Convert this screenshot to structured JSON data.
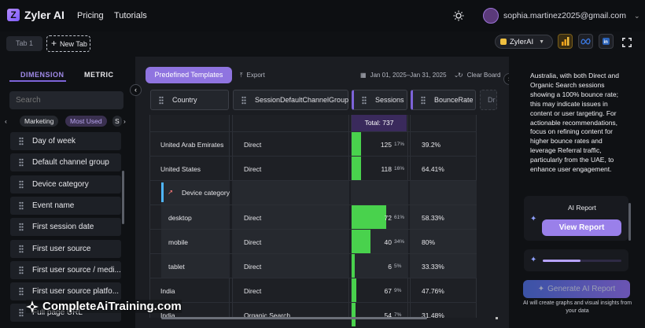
{
  "app": {
    "name": "Zyler AI",
    "nav": [
      "Pricing",
      "Tutorials"
    ],
    "user_email": "sophia.martinez2025@gmail.com"
  },
  "tabs": {
    "items": [
      "Tab 1"
    ],
    "new_tab_label": "New Tab"
  },
  "toolbar": {
    "model_label": "ZylerAI",
    "predefined_label": "Predefined Templates",
    "export_label": "Export",
    "date_range": "Jan 01, 2025–Jan 31, 2025",
    "clear_label": "Clear Board"
  },
  "sidebar": {
    "tab_dimension": "DIMENSION",
    "tab_metric": "METRIC",
    "search_placeholder": "Search",
    "chips": [
      "Marketing",
      "Most Used",
      "S"
    ],
    "items": [
      "Day of week",
      "Default channel group",
      "Device category",
      "Event name",
      "First session date",
      "First user source",
      "First user source / medi...",
      "First user source platfo...",
      "Full page URL"
    ]
  },
  "table": {
    "headers": [
      "Country",
      "SessionDefaultChannelGroup",
      "Sessions",
      "BounceRate",
      "Dr"
    ],
    "total_label": "Total: 737",
    "drag_label": "Device category",
    "rows": [
      {
        "country": "United Arab Emirates",
        "channel": "Direct",
        "sessions": "125",
        "pct": "17%",
        "bounce": "39.2%",
        "share": 0.17,
        "sub": false
      },
      {
        "country": "United States",
        "channel": "Direct",
        "sessions": "118",
        "pct": "16%",
        "bounce": "64.41%",
        "share": 0.16,
        "sub": false
      },
      {
        "country": "",
        "channel": "",
        "sessions": "",
        "pct": "",
        "bounce": "",
        "share": 0,
        "sub": "drag"
      },
      {
        "country": "desktop",
        "channel": "Direct",
        "sessions": "72",
        "pct": "61%",
        "bounce": "58.33%",
        "share": 0.61,
        "sub": true
      },
      {
        "country": "mobile",
        "channel": "Direct",
        "sessions": "40",
        "pct": "34%",
        "bounce": "80%",
        "share": 0.34,
        "sub": true
      },
      {
        "country": "tablet",
        "channel": "Direct",
        "sessions": "6",
        "pct": "5%",
        "bounce": "33.33%",
        "share": 0.05,
        "sub": true
      },
      {
        "country": "India",
        "channel": "Direct",
        "sessions": "67",
        "pct": "9%",
        "bounce": "47.76%",
        "share": 0.09,
        "sub": false
      },
      {
        "country": "India",
        "channel": "Organic Search",
        "sessions": "54",
        "pct": "7%",
        "bounce": "31.48%",
        "share": 0.07,
        "sub": false
      }
    ]
  },
  "ai_panel": {
    "insight_text": "Australia, with both Direct and Organic Search sessions showing a 100% bounce rate; this may indicate issues in content or user targeting. For actionable recommendations, focus on refining content for higher bounce rates and leverage Referral traffic, particularly from the UAE, to enhance user engagement.",
    "report_title": "AI Report",
    "view_report_label": "View Report",
    "generate_label": "Generate AI Report",
    "generate_note": "AI will create graphs and visual insights from your data",
    "loader_progress": 0.48
  },
  "watermark": "CompleteAiTraining.com",
  "colors": {
    "accent": "#8f74e0",
    "bar": "#49d24d",
    "total_bg": "#3a2a5c"
  }
}
